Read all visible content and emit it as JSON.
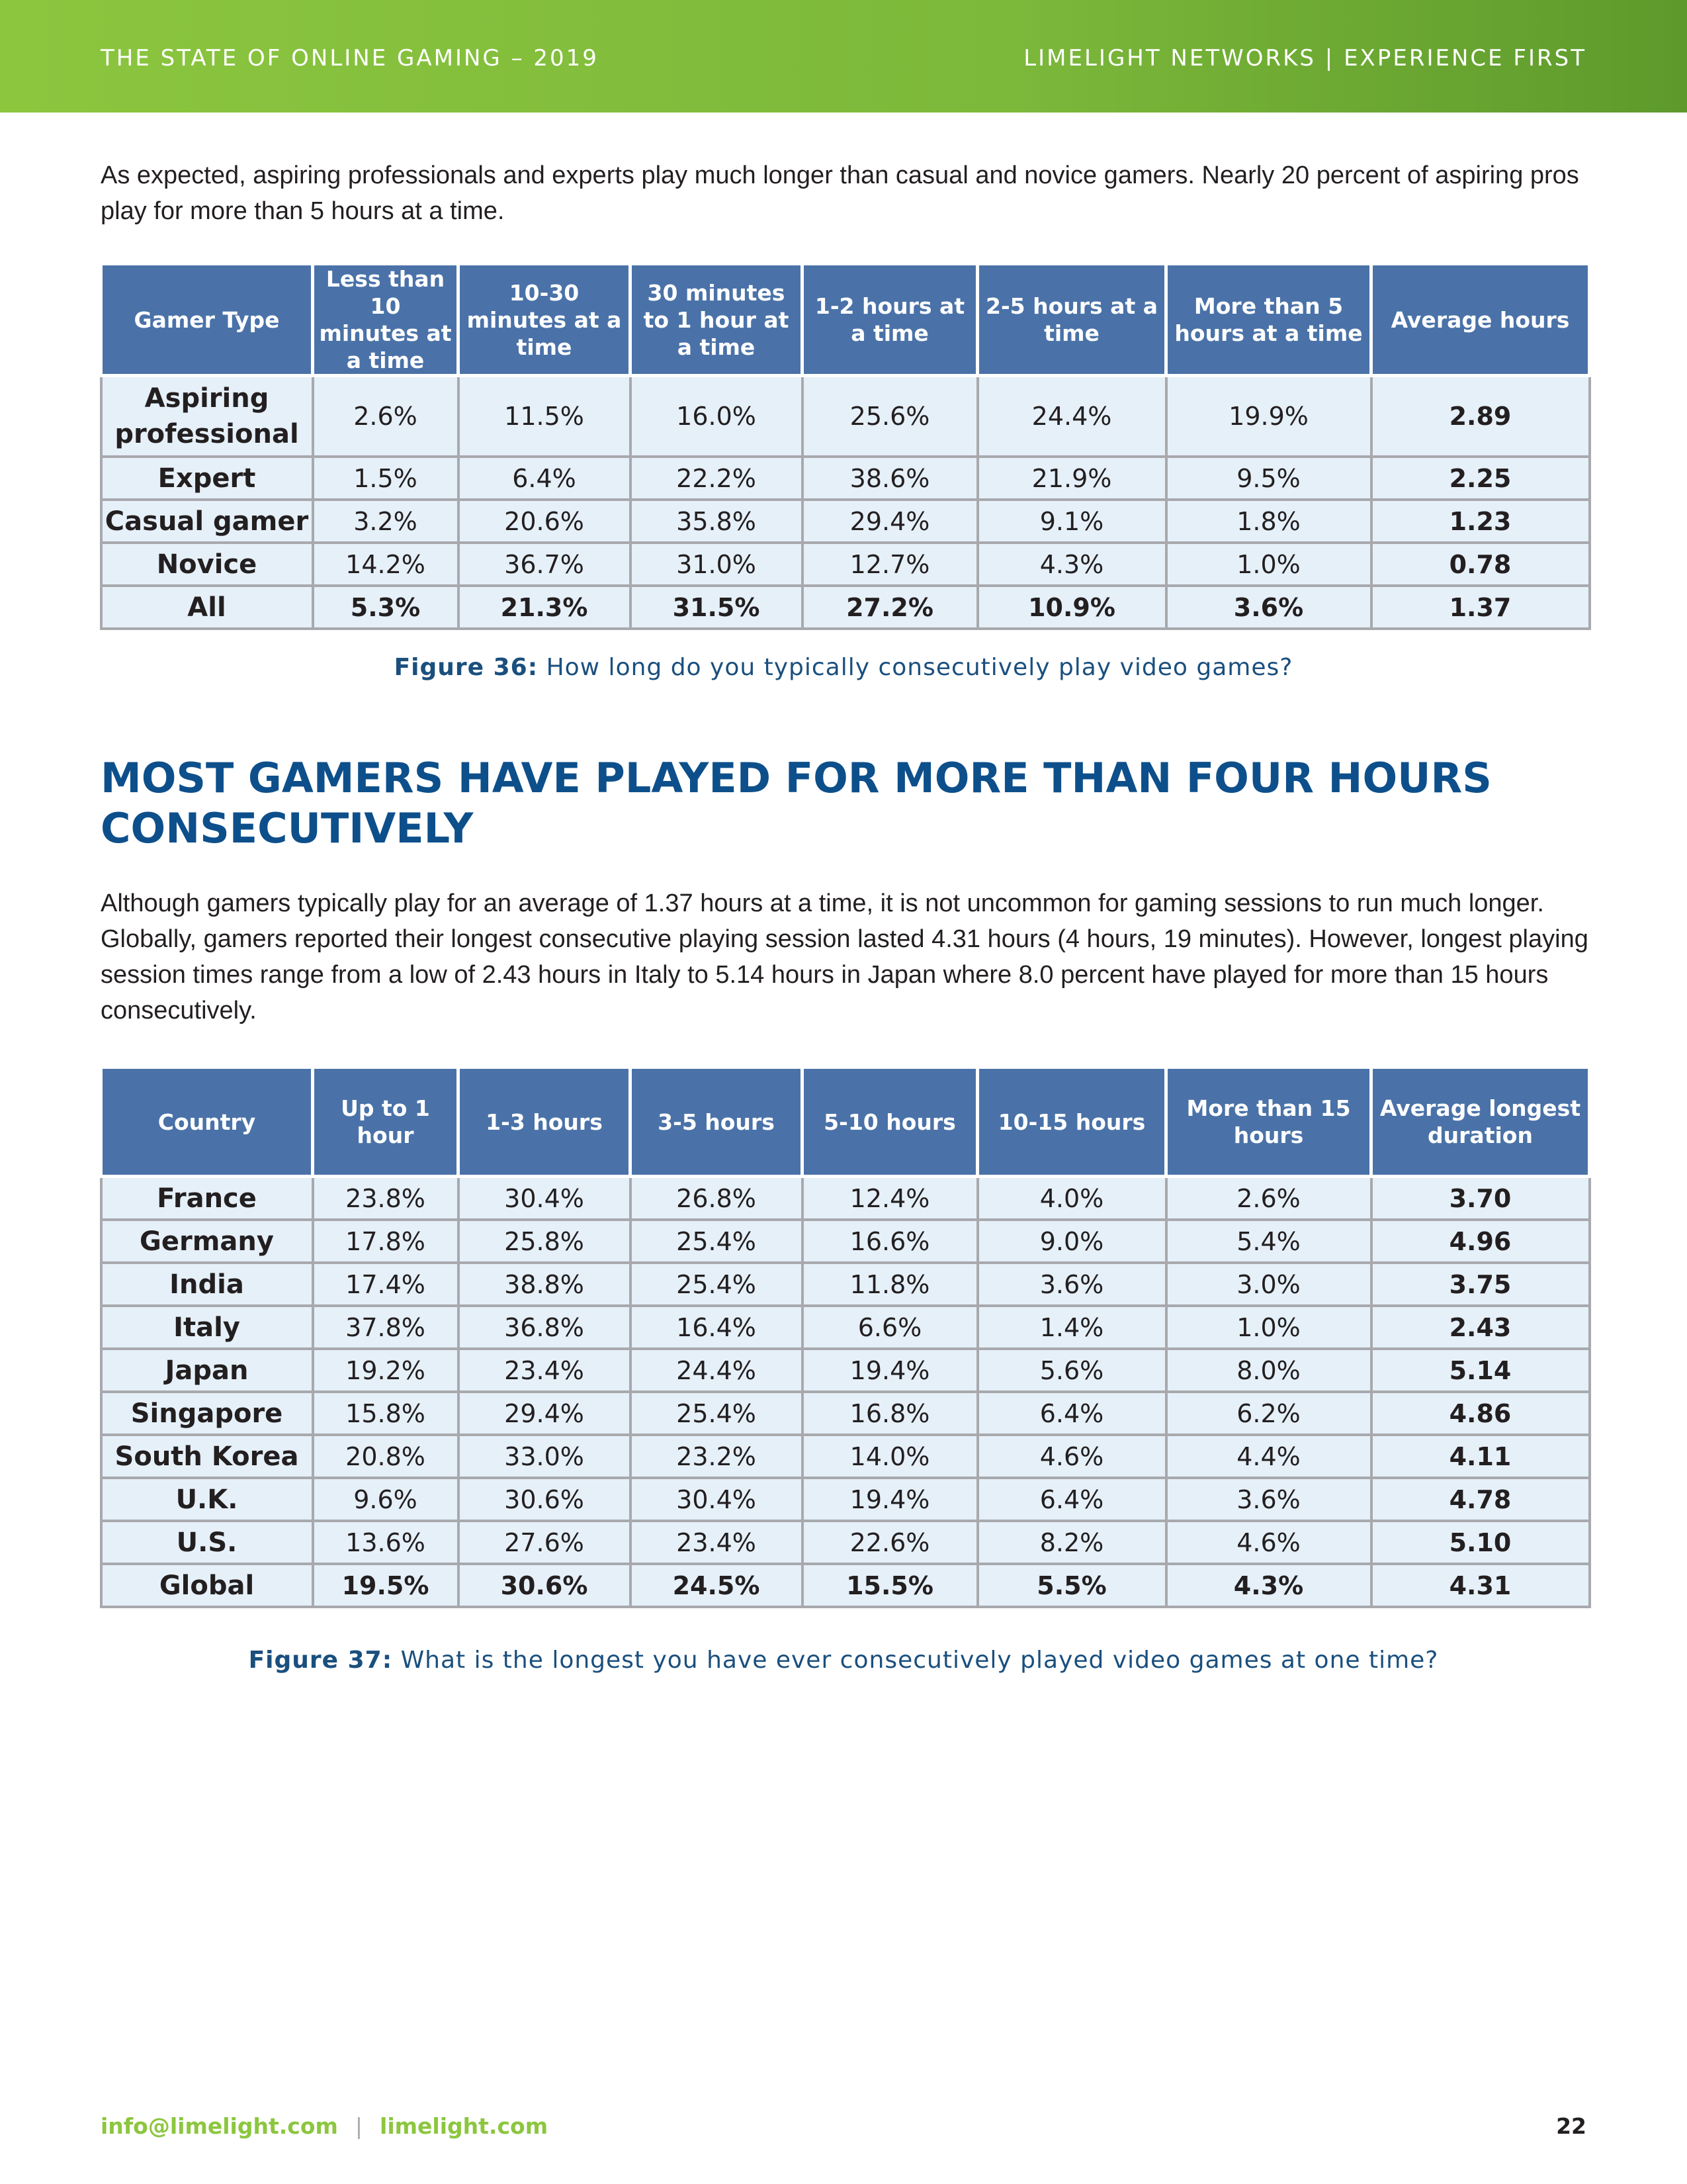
{
  "header": {
    "left": "THE STATE OF ONLINE GAMING – 2019",
    "right": "LIMELIGHT NETWORKS | EXPERIENCE FIRST"
  },
  "intro_paragraph": "As expected, aspiring professionals and experts play much longer than casual and novice gamers. Nearly 20 percent of aspiring pros play for more than 5 hours at a time.",
  "table1": {
    "headers": [
      "Gamer Type",
      "Less than 10 minutes at a time",
      "10-30 minutes at a time",
      "30 minutes to 1 hour at a time",
      "1-2 hours at a time",
      "2-5 hours at a time",
      "More than 5 hours at a time",
      "Average hours"
    ],
    "rows": [
      [
        "Aspiring professional",
        "2.6%",
        "11.5%",
        "16.0%",
        "25.6%",
        "24.4%",
        "19.9%",
        "2.89"
      ],
      [
        "Expert",
        "1.5%",
        "6.4%",
        "22.2%",
        "38.6%",
        "21.9%",
        "9.5%",
        "2.25"
      ],
      [
        "Casual gamer",
        "3.2%",
        "20.6%",
        "35.8%",
        "29.4%",
        "9.1%",
        "1.8%",
        "1.23"
      ],
      [
        "Novice",
        "14.2%",
        "36.7%",
        "31.0%",
        "12.7%",
        "4.3%",
        "1.0%",
        "0.78"
      ],
      [
        "All",
        "5.3%",
        "21.3%",
        "31.5%",
        "27.2%",
        "10.9%",
        "3.6%",
        "1.37"
      ]
    ]
  },
  "caption1": {
    "label": "Figure 36:",
    "text": "How long do you typically consecutively play video games?"
  },
  "section_heading": "MOST GAMERS HAVE PLAYED FOR MORE THAN FOUR HOURS CONSECUTIVELY",
  "section_paragraph": "Although gamers typically play for an average of 1.37 hours at a time, it is not uncommon for gaming sessions to run much longer. Globally, gamers reported their longest consecutive playing session lasted 4.31 hours (4 hours, 19 minutes). However, longest playing session times range from a low of 2.43 hours in Italy to 5.14 hours in Japan where 8.0 percent have played for more than 15 hours consecutively.",
  "table2": {
    "headers": [
      "Country",
      "Up to 1 hour",
      "1-3 hours",
      "3-5 hours",
      "5-10 hours",
      "10-15 hours",
      "More than 15 hours",
      "Average longest duration"
    ],
    "rows": [
      [
        "France",
        "23.8%",
        "30.4%",
        "26.8%",
        "12.4%",
        "4.0%",
        "2.6%",
        "3.70"
      ],
      [
        "Germany",
        "17.8%",
        "25.8%",
        "25.4%",
        "16.6%",
        "9.0%",
        "5.4%",
        "4.96"
      ],
      [
        "India",
        "17.4%",
        "38.8%",
        "25.4%",
        "11.8%",
        "3.6%",
        "3.0%",
        "3.75"
      ],
      [
        "Italy",
        "37.8%",
        "36.8%",
        "16.4%",
        "6.6%",
        "1.4%",
        "1.0%",
        "2.43"
      ],
      [
        "Japan",
        "19.2%",
        "23.4%",
        "24.4%",
        "19.4%",
        "5.6%",
        "8.0%",
        "5.14"
      ],
      [
        "Singapore",
        "15.8%",
        "29.4%",
        "25.4%",
        "16.8%",
        "6.4%",
        "6.2%",
        "4.86"
      ],
      [
        "South Korea",
        "20.8%",
        "33.0%",
        "23.2%",
        "14.0%",
        "4.6%",
        "4.4%",
        "4.11"
      ],
      [
        "U.K.",
        "9.6%",
        "30.6%",
        "30.4%",
        "19.4%",
        "6.4%",
        "3.6%",
        "4.78"
      ],
      [
        "U.S.",
        "13.6%",
        "27.6%",
        "23.4%",
        "22.6%",
        "8.2%",
        "4.6%",
        "5.10"
      ],
      [
        "Global",
        "19.5%",
        "30.6%",
        "24.5%",
        "15.5%",
        "5.5%",
        "4.3%",
        "4.31"
      ]
    ]
  },
  "caption2": {
    "label": "Figure 37:",
    "text": "What is the longest you have ever consecutively played video games at one time?"
  },
  "footer": {
    "email": "info@limelight.com",
    "separator": "|",
    "website": "limelight.com",
    "page_number": "22"
  },
  "colors": {
    "header_green": "#8cc63f",
    "table_header_blue": "#4a72a8",
    "cell_light_blue": "#e6f0f9",
    "heading_navy": "#0d4f8b"
  }
}
